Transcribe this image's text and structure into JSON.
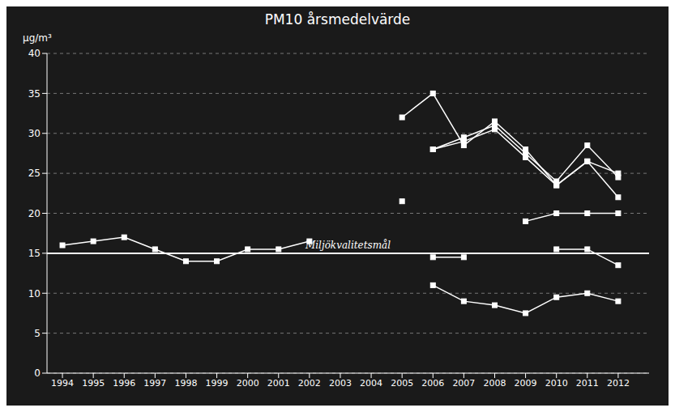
{
  "chart_data": {
    "type": "line",
    "title": "PM10 årsmedelvärde",
    "y_label": "μg/m³",
    "x": [
      1994,
      1995,
      1996,
      1997,
      1998,
      1999,
      2000,
      2001,
      2002,
      2003,
      2004,
      2005,
      2006,
      2007,
      2008,
      2009,
      2010,
      2011,
      2012
    ],
    "xlim": [
      1993.5,
      2013
    ],
    "xticks": [
      1994,
      1995,
      1996,
      1997,
      1998,
      1999,
      2000,
      2001,
      2002,
      2003,
      2004,
      2005,
      2006,
      2007,
      2008,
      2009,
      2010,
      2011,
      2012
    ],
    "ylim": [
      0,
      40
    ],
    "yticks": [
      0,
      5,
      10,
      15,
      20,
      25,
      30,
      35,
      40
    ],
    "grid": true,
    "marker": "square",
    "series": [
      {
        "color": "#ffffff",
        "values": [
          16.0,
          16.5,
          17.0,
          15.5,
          14.0,
          14.0,
          15.5,
          15.5,
          16.5,
          null,
          null,
          null,
          14.5,
          14.5,
          null,
          null,
          15.5,
          15.5,
          13.5
        ]
      },
      {
        "color": "#ffffff",
        "values": [
          null,
          null,
          null,
          null,
          null,
          null,
          null,
          null,
          null,
          null,
          null,
          32.0,
          35.0,
          28.5,
          31.5,
          28.0,
          23.5,
          26.5,
          25.0
        ]
      },
      {
        "color": "#ffffff",
        "values": [
          null,
          null,
          null,
          null,
          null,
          null,
          null,
          null,
          null,
          null,
          null,
          null,
          28.0,
          29.5,
          31.0,
          27.5,
          24.0,
          28.5,
          24.5
        ]
      },
      {
        "color": "#ffffff",
        "values": [
          null,
          null,
          null,
          null,
          null,
          null,
          null,
          null,
          null,
          null,
          null,
          null,
          28.0,
          29.0,
          30.5,
          27.0,
          23.5,
          26.5,
          22.0
        ]
      },
      {
        "color": "#ffffff",
        "values": [
          null,
          null,
          null,
          null,
          null,
          null,
          null,
          null,
          null,
          null,
          null,
          21.5,
          null,
          null,
          null,
          19.0,
          20.0,
          20.0,
          20.0
        ]
      },
      {
        "color": "#ffffff",
        "values": [
          null,
          null,
          null,
          null,
          null,
          null,
          null,
          null,
          null,
          null,
          null,
          null,
          11.0,
          9.0,
          8.5,
          7.5,
          9.5,
          10.0,
          9.0
        ]
      }
    ],
    "annotations": [
      {
        "text": "Miljökvalitetsmål",
        "y": 15
      }
    ]
  }
}
